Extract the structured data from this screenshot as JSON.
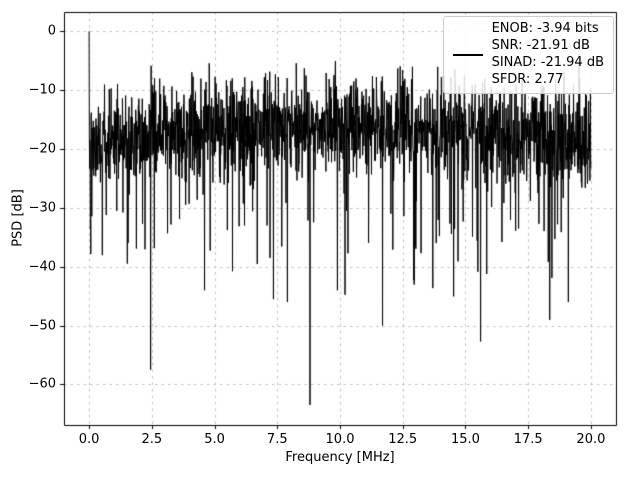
{
  "figure": {
    "background": "#ffffff"
  },
  "metrics": {
    "enob_bits": -3.94,
    "snr_db": -21.91,
    "sinad_db": -21.94,
    "sfdr": 2.77
  },
  "chart_data": {
    "type": "line",
    "title": "",
    "xlabel": "Frequency [MHz]",
    "ylabel": "PSD [dB]",
    "xlim": [
      -1,
      21
    ],
    "ylim": [
      -66.9,
      3.3
    ],
    "xticks": [
      0,
      2.5,
      5,
      7.5,
      10,
      12.5,
      15,
      17.5,
      20
    ],
    "xtick_labels": [
      "0.0",
      "2.5",
      "5.0",
      "7.5",
      "10.0",
      "12.5",
      "15.0",
      "17.5",
      "20.0"
    ],
    "yticks": [
      0,
      -10,
      -20,
      -30,
      -40,
      -50,
      -60
    ],
    "ytick_labels": [
      "0",
      "−10",
      "−20",
      "−30",
      "−40",
      "−50",
      "−60"
    ],
    "grid": true,
    "grid_color": "#b0b0b0",
    "axes_edge_color": "#000000",
    "legend_position": "upper right",
    "legend_entries": [
      "ENOB: -3.94 bits",
      "SNR: -21.91 dB",
      "SINAD: -21.94 dB",
      "SFDR: 2.77"
    ],
    "series": [
      {
        "name": "PSD",
        "color": "#000000",
        "line_width": 1,
        "x_range": [
          0,
          20
        ],
        "n_points": 2048,
        "description": "Dense noise-like power spectral density trace; solid black band between about -8 dB and -30 dB with frequent downward spikes, a fundamental peak at 0 MHz reaching 0 dB, and deep nulls listed in notable_points.",
        "noise_floor_db": -18,
        "upper_envelope_db": -7,
        "noise_model": {
          "seed": 42,
          "mean_db": -18.5,
          "mean_bow_db": 2.5,
          "std_db": 4.2,
          "dip_prob": 0.05,
          "dip_extra_min_db": 6,
          "dip_extra_max_db": 24,
          "soft_max_db": -5
        },
        "notable_points": [
          {
            "x": 0.0,
            "y": 0.0,
            "label": "peak at DC / fundamental"
          },
          {
            "x": 0.05,
            "y": -33.5
          },
          {
            "x": 2.45,
            "y": -57.5
          },
          {
            "x": 4.6,
            "y": -44.0
          },
          {
            "x": 7.35,
            "y": -45.5
          },
          {
            "x": 7.9,
            "y": -46.0
          },
          {
            "x": 8.8,
            "y": -63.5
          },
          {
            "x": 9.9,
            "y": -44.0
          },
          {
            "x": 11.7,
            "y": -50.0
          },
          {
            "x": 15.6,
            "y": -52.7
          },
          {
            "x": 19.1,
            "y": -46.0
          }
        ]
      }
    ]
  }
}
